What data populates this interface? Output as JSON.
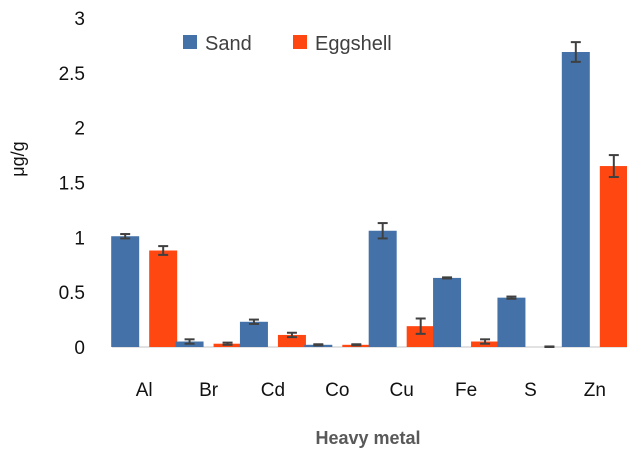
{
  "chart_data": {
    "type": "bar",
    "categories": [
      "Al",
      "Br",
      "Cd",
      "Co",
      "Cu",
      "Fe",
      "S",
      "Zn"
    ],
    "series": [
      {
        "name": "Sand",
        "color": "#4472a8",
        "values": [
          1.01,
          0.05,
          0.23,
          0.02,
          1.06,
          0.63,
          0.45,
          2.69
        ],
        "errors": [
          0.02,
          0.02,
          0.02,
          0.005,
          0.07,
          0.005,
          0.01,
          0.09
        ]
      },
      {
        "name": "Eggshell",
        "color": "#ff4712",
        "values": [
          0.88,
          0.03,
          0.11,
          0.02,
          0.19,
          0.05,
          0.0,
          1.65
        ],
        "errors": [
          0.04,
          0.01,
          0.02,
          0.005,
          0.07,
          0.02,
          0.005,
          0.1
        ]
      }
    ],
    "xlabel": "Heavy metal",
    "ylabel": "μg/g",
    "ylim": [
      0,
      3
    ],
    "yticks": [
      "0",
      "0.5",
      "1",
      "1.5",
      "2",
      "2.5",
      "3"
    ],
    "grid": false,
    "legend_position": "top-left"
  }
}
